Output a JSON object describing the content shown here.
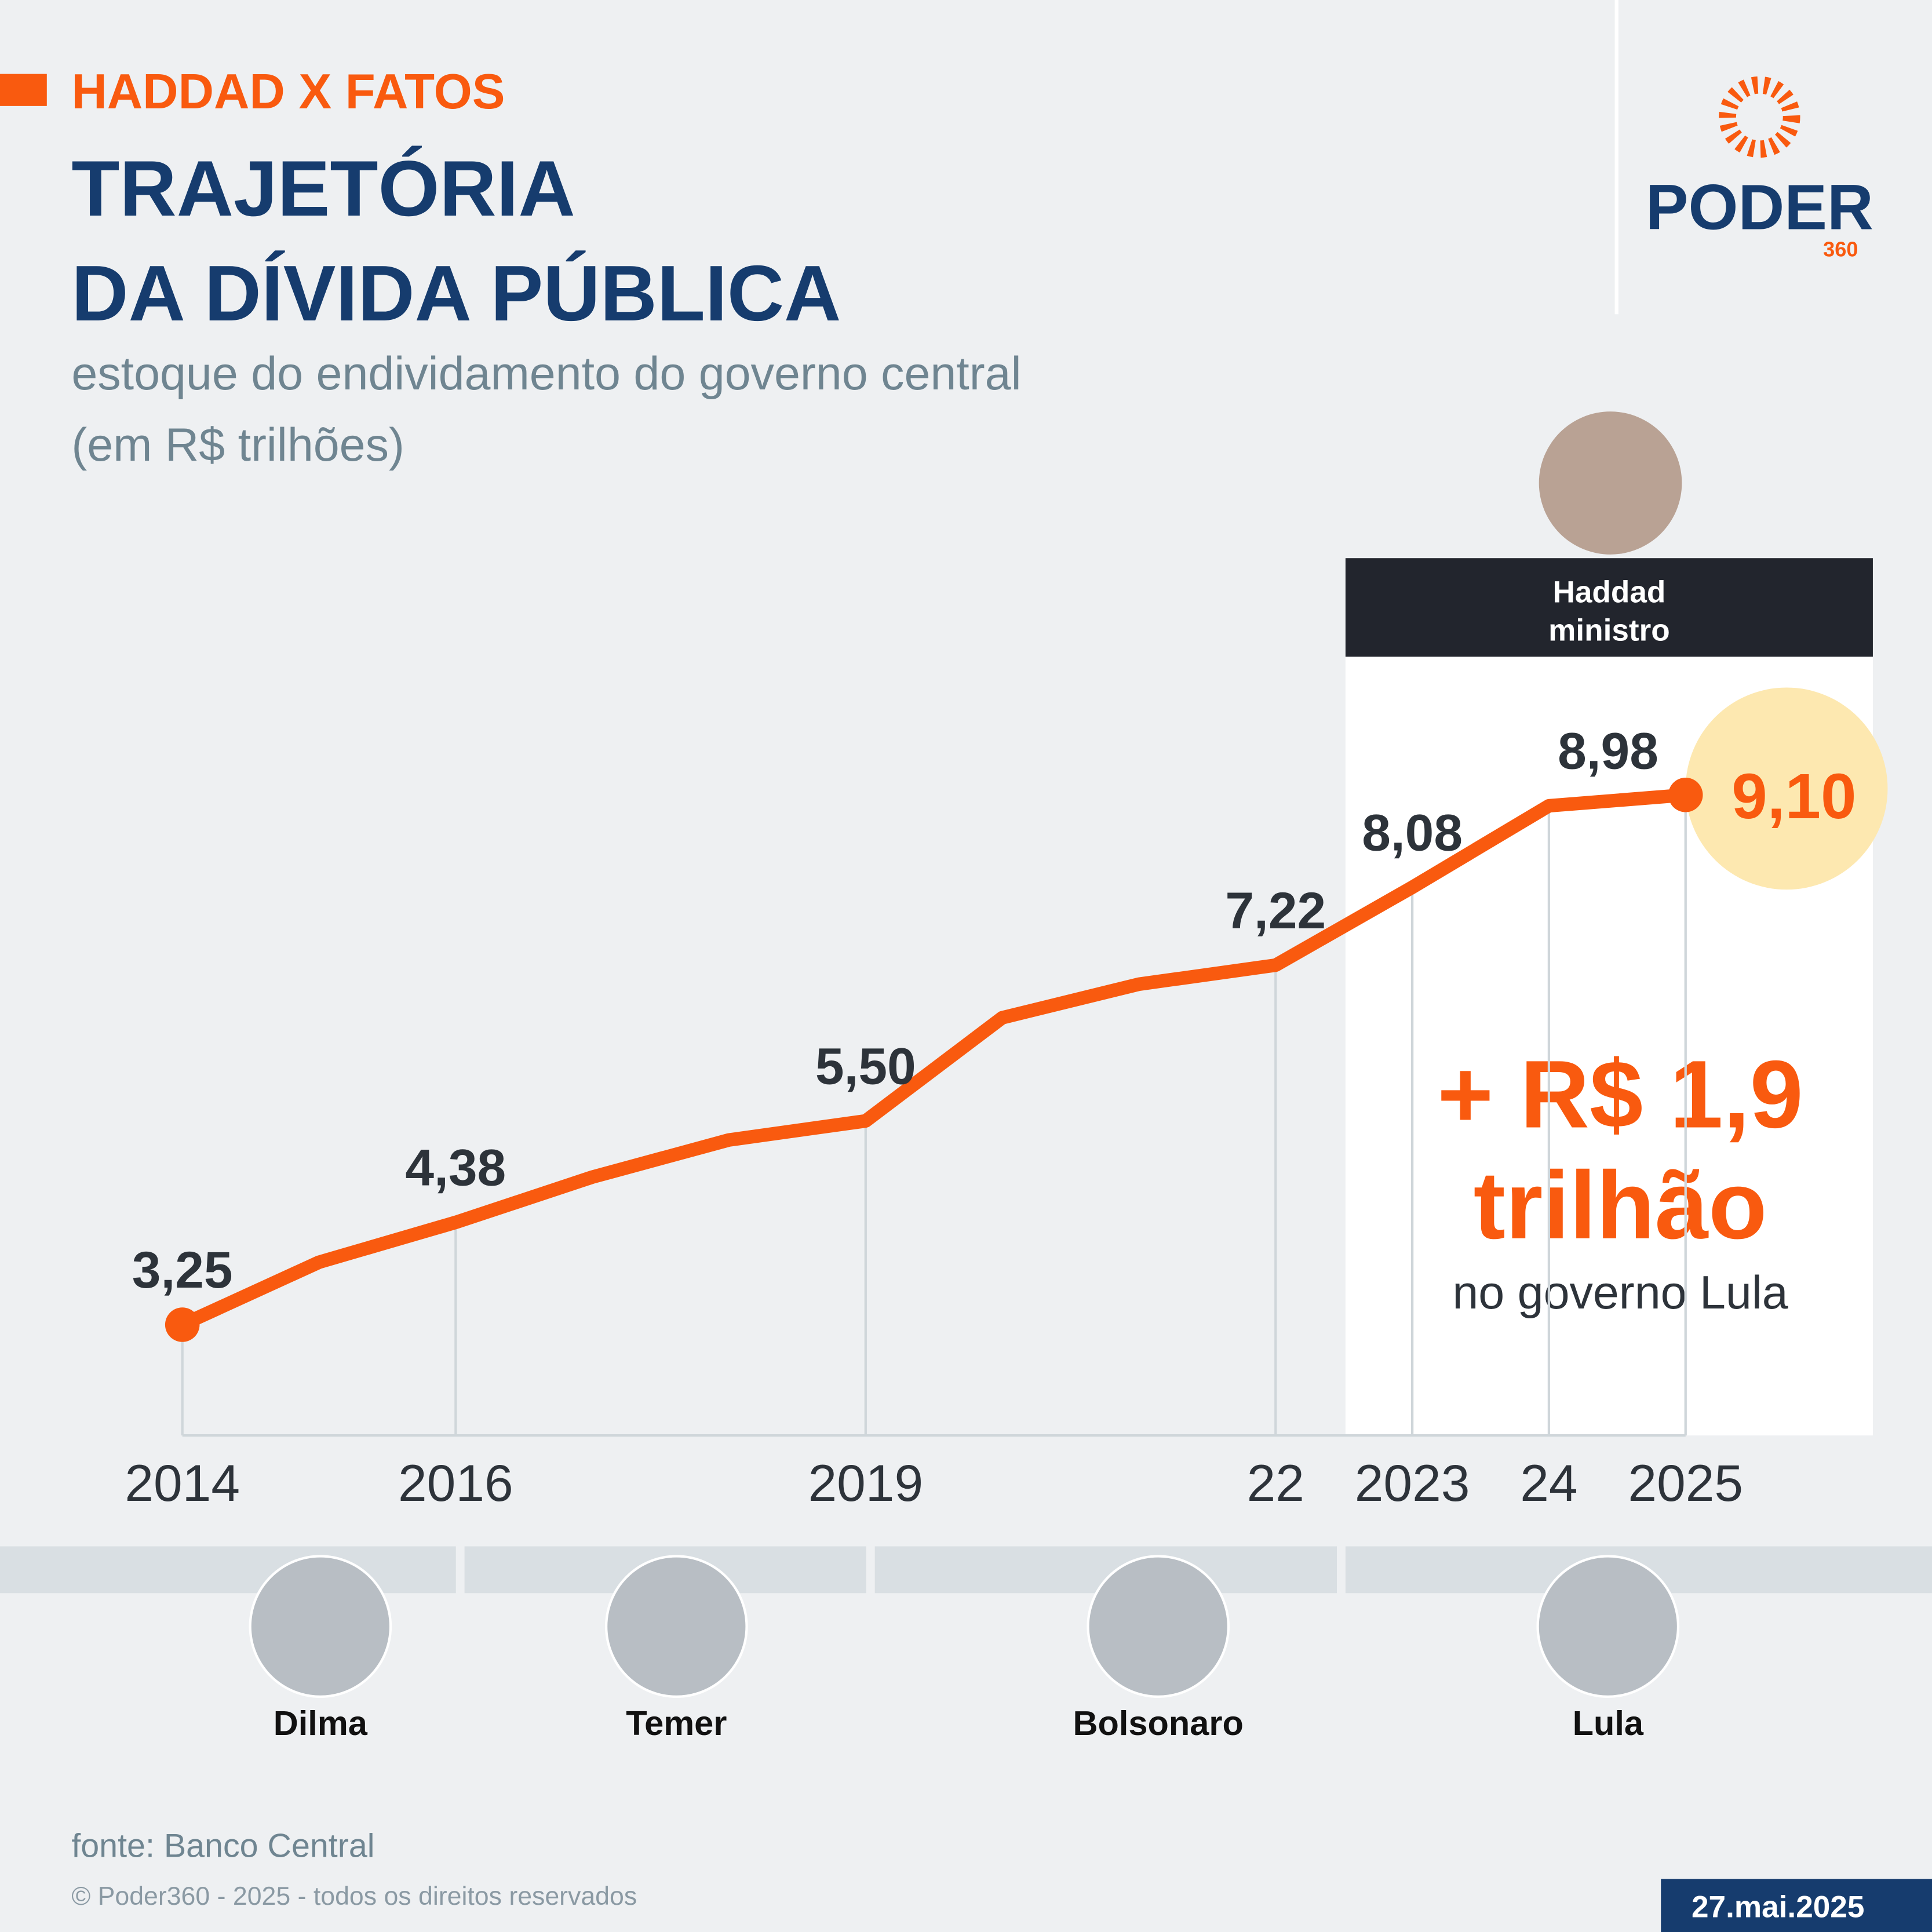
{
  "header": {
    "tag": "HADDAD X FATOS",
    "title_lines": [
      "TRAJETÓRIA",
      "DA DÍVIDA PÚBLICA"
    ],
    "subtitle_lines": [
      "estoque do endividamento do governo central",
      "(em R$ trilhões)"
    ]
  },
  "logo": {
    "name": "PODER",
    "number": "360"
  },
  "chart_data": {
    "type": "line",
    "color": "#f95a0f",
    "x": [
      2014,
      2015,
      2016,
      2017,
      2018,
      2019,
      2020,
      2021,
      2022,
      2023,
      2024,
      2025
    ],
    "values": [
      3.25,
      3.94,
      4.38,
      4.88,
      5.29,
      5.5,
      6.64,
      7.01,
      7.22,
      8.08,
      8.98,
      9.1
    ],
    "value_labels": [
      "3,25",
      null,
      "4,38",
      null,
      null,
      "5,50",
      null,
      null,
      "7,22",
      "8,08",
      "8,98",
      "9,10"
    ],
    "xlim": [
      2014,
      2025
    ],
    "xticks": [
      2014,
      2016,
      2019,
      {
        "value": 2022,
        "label": "22"
      },
      2023,
      {
        "value": 2024,
        "label": "24"
      },
      2025
    ],
    "ylim": [
      2,
      10
    ],
    "grid": true,
    "highlight": {
      "lines": [
        "Haddad",
        "ministro"
      ]
    },
    "annotation": {
      "lines": [
        "+ R$ 1,9",
        "trilhão"
      ],
      "note": "no governo Lula"
    }
  },
  "presidents": [
    "Dilma",
    "Temer",
    "Bolsonaro",
    "Lula"
  ],
  "footer": {
    "source": "fonte: Banco Central",
    "copyright": "© Poder360 - 2025 - todos os direitos reservados",
    "date": "27.mai.2025"
  }
}
